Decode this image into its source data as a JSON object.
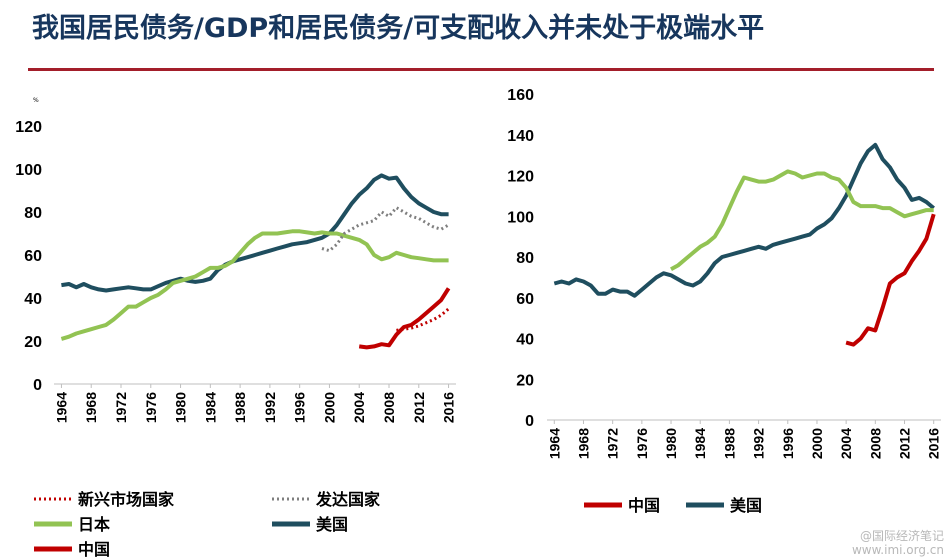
{
  "title": "我国居民债务/GDP和居民债务/可支配收入并未处于极端水平",
  "colors": {
    "china": "#c00000",
    "usa": "#1f4e5f",
    "japan": "#92c353",
    "developed": "#7f7f7f",
    "emerging": "#c00000",
    "rule": "#a31e2a"
  },
  "chart_data": [
    {
      "type": "line",
      "unit_mark": "%",
      "ylim": [
        0,
        120
      ],
      "yticks": [
        0,
        20,
        40,
        60,
        80,
        100,
        120
      ],
      "xlim": [
        1963,
        2017
      ],
      "xticks": [
        1964,
        1968,
        1972,
        1976,
        1980,
        1984,
        1988,
        1992,
        1996,
        2000,
        2004,
        2008,
        2012,
        2016
      ],
      "legend": [
        {
          "name": "新兴市场国家",
          "style": "dotted",
          "color": "#c00000"
        },
        {
          "name": "发达国家",
          "style": "dotted",
          "color": "#7f7f7f"
        },
        {
          "name": "日本",
          "style": "solid",
          "color": "#92c353"
        },
        {
          "name": "美国",
          "style": "solid",
          "color": "#1f4e5f"
        },
        {
          "name": "中国",
          "style": "solid",
          "color": "#c00000"
        }
      ],
      "series": [
        {
          "name": "美国",
          "style": "solid",
          "color": "#1f4e5f",
          "x": [
            1964,
            1965,
            1966,
            1967,
            1968,
            1969,
            1970,
            1971,
            1972,
            1973,
            1974,
            1975,
            1976,
            1977,
            1978,
            1979,
            1980,
            1981,
            1982,
            1983,
            1984,
            1985,
            1986,
            1987,
            1988,
            1989,
            1990,
            1991,
            1992,
            1993,
            1994,
            1995,
            1996,
            1997,
            1998,
            1999,
            2000,
            2001,
            2002,
            2003,
            2004,
            2005,
            2006,
            2007,
            2008,
            2009,
            2010,
            2011,
            2012,
            2013,
            2014,
            2015,
            2016
          ],
          "y": [
            46,
            46.5,
            45,
            46.5,
            45,
            44,
            43.5,
            44,
            44.5,
            45,
            44.5,
            44,
            44,
            45.5,
            47,
            48,
            49,
            48,
            47.5,
            48,
            49,
            53,
            55.5,
            57,
            58,
            59,
            60,
            61,
            62,
            63,
            64,
            65,
            65.5,
            66,
            67,
            68,
            70,
            74,
            79,
            84,
            88,
            91,
            95,
            97,
            95.5,
            96,
            91,
            87,
            84,
            82,
            80,
            79,
            79
          ]
        },
        {
          "name": "日本",
          "style": "solid",
          "color": "#92c353",
          "x": [
            1964,
            1965,
            1966,
            1967,
            1968,
            1969,
            1970,
            1971,
            1972,
            1973,
            1974,
            1975,
            1976,
            1977,
            1978,
            1979,
            1980,
            1981,
            1982,
            1983,
            1984,
            1985,
            1986,
            1987,
            1988,
            1989,
            1990,
            1991,
            1992,
            1993,
            1994,
            1995,
            1996,
            1997,
            1998,
            1999,
            2000,
            2001,
            2002,
            2003,
            2004,
            2005,
            2006,
            2007,
            2008,
            2009,
            2010,
            2011,
            2012,
            2013,
            2014,
            2015,
            2016
          ],
          "y": [
            21,
            22,
            23.5,
            24.5,
            25.5,
            26.5,
            27.5,
            30,
            33,
            36,
            36,
            38,
            40,
            41.5,
            44,
            47,
            48,
            49,
            50,
            52,
            54,
            54,
            55,
            57,
            61,
            65,
            68,
            70,
            70,
            70,
            70.5,
            71,
            71,
            70.5,
            70,
            70.5,
            70,
            70,
            69,
            68,
            67,
            65,
            60,
            58,
            59,
            61,
            60,
            59,
            58.5,
            58,
            57.5,
            57.5,
            57.5
          ]
        },
        {
          "name": "发达国家",
          "style": "dotted",
          "color": "#7f7f7f",
          "x": [
            1999,
            2000,
            2001,
            2002,
            2003,
            2004,
            2005,
            2006,
            2007,
            2008,
            2009,
            2010,
            2011,
            2012,
            2013,
            2014,
            2015,
            2016
          ],
          "y": [
            63,
            62,
            65,
            70,
            72,
            74,
            75,
            76,
            80,
            78,
            82,
            80,
            78,
            77,
            75,
            73,
            72,
            74
          ]
        },
        {
          "name": "新兴市场国家",
          "style": "dotted",
          "color": "#c00000",
          "x": [
            2009,
            2010,
            2011,
            2012,
            2013,
            2014,
            2015,
            2016
          ],
          "y": [
            25,
            25.5,
            26,
            27,
            28.5,
            30,
            32,
            35
          ]
        },
        {
          "name": "中国",
          "style": "solid",
          "color": "#c00000",
          "x": [
            2004,
            2005,
            2006,
            2007,
            2008,
            2009,
            2010,
            2011,
            2012,
            2013,
            2014,
            2015,
            2016
          ],
          "y": [
            17.5,
            17,
            17.5,
            18.5,
            18,
            23,
            26.5,
            27.5,
            30,
            33,
            36,
            39,
            44.5
          ]
        }
      ]
    },
    {
      "type": "line",
      "ylim": [
        0,
        160
      ],
      "yticks": [
        0,
        20,
        40,
        60,
        80,
        100,
        120,
        140,
        160
      ],
      "xlim": [
        1963,
        2017
      ],
      "xticks": [
        1964,
        1968,
        1972,
        1976,
        1980,
        1984,
        1988,
        1992,
        1996,
        2000,
        2004,
        2008,
        2012,
        2016
      ],
      "legend": [
        {
          "name": "中国",
          "style": "solid",
          "color": "#c00000"
        },
        {
          "name": "美国",
          "style": "solid",
          "color": "#1f4e5f"
        }
      ],
      "series": [
        {
          "name": "美国",
          "style": "solid",
          "color": "#1f4e5f",
          "x": [
            1964,
            1965,
            1966,
            1967,
            1968,
            1969,
            1970,
            1971,
            1972,
            1973,
            1974,
            1975,
            1976,
            1977,
            1978,
            1979,
            1980,
            1981,
            1982,
            1983,
            1984,
            1985,
            1986,
            1987,
            1988,
            1989,
            1990,
            1991,
            1992,
            1993,
            1994,
            1995,
            1996,
            1997,
            1998,
            1999,
            2000,
            2001,
            2002,
            2003,
            2004,
            2005,
            2006,
            2007,
            2008,
            2009,
            2010,
            2011,
            2012,
            2013,
            2014,
            2015,
            2016
          ],
          "y": [
            67,
            68,
            67,
            69,
            68,
            66,
            62,
            62,
            64,
            63,
            63,
            61,
            64,
            67,
            70,
            72,
            71,
            69,
            67,
            66,
            68,
            72,
            77,
            80,
            81,
            82,
            83,
            84,
            85,
            84,
            86,
            87,
            88,
            89,
            90,
            91,
            94,
            96,
            99,
            104,
            110,
            118,
            126,
            132,
            135,
            128,
            124,
            118,
            114,
            108,
            109,
            107,
            104
          ]
        },
        {
          "name": "日本",
          "style": "solid",
          "color": "#92c353",
          "x": [
            1980,
            1981,
            1982,
            1983,
            1984,
            1985,
            1986,
            1987,
            1988,
            1989,
            1990,
            1991,
            1992,
            1993,
            1994,
            1995,
            1996,
            1997,
            1998,
            1999,
            2000,
            2001,
            2002,
            2003,
            2004,
            2005,
            2006,
            2007,
            2008,
            2009,
            2010,
            2011,
            2012,
            2013,
            2014,
            2015,
            2016
          ],
          "y": [
            74,
            76,
            79,
            82,
            85,
            87,
            90,
            96,
            104,
            112,
            119,
            118,
            117,
            117,
            118,
            120,
            122,
            121,
            119,
            120,
            121,
            121,
            119,
            118,
            114,
            107,
            105,
            105,
            105,
            104,
            104,
            102,
            100,
            101,
            102,
            103,
            103
          ]
        },
        {
          "name": "中国",
          "style": "solid",
          "color": "#c00000",
          "x": [
            2004,
            2005,
            2006,
            2007,
            2008,
            2009,
            2010,
            2011,
            2012,
            2013,
            2014,
            2015,
            2016
          ],
          "y": [
            38,
            37,
            40,
            45,
            44,
            55,
            67,
            70,
            72,
            78,
            83,
            89,
            101
          ]
        }
      ]
    }
  ],
  "watermark": {
    "line1": "@国际经济笔记",
    "line2": "www.imi.org.cn"
  }
}
